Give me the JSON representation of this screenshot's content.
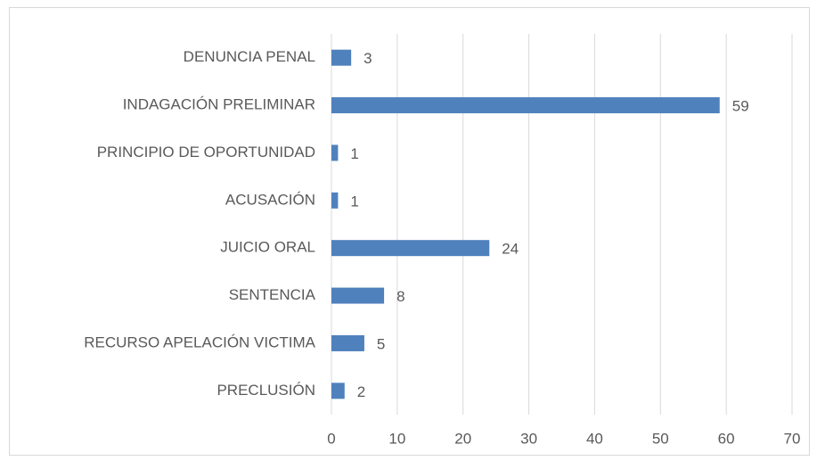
{
  "chart_data": {
    "type": "bar",
    "orientation": "horizontal",
    "categories": [
      "DENUNCIA PENAL",
      "INDAGACIÓN PRELIMINAR",
      "PRINCIPIO DE OPORTUNIDAD",
      "ACUSACIÓN",
      "JUICIO ORAL",
      "SENTENCIA",
      "RECURSO APELACIÓN VICTIMA",
      "PRECLUSIÓN"
    ],
    "values": [
      3,
      59,
      1,
      1,
      24,
      8,
      5,
      2
    ],
    "color": "#4f81bd",
    "xlim": [
      0,
      70
    ],
    "xticks": [
      0,
      10,
      20,
      30,
      40,
      50,
      60,
      70
    ],
    "grid": true
  }
}
